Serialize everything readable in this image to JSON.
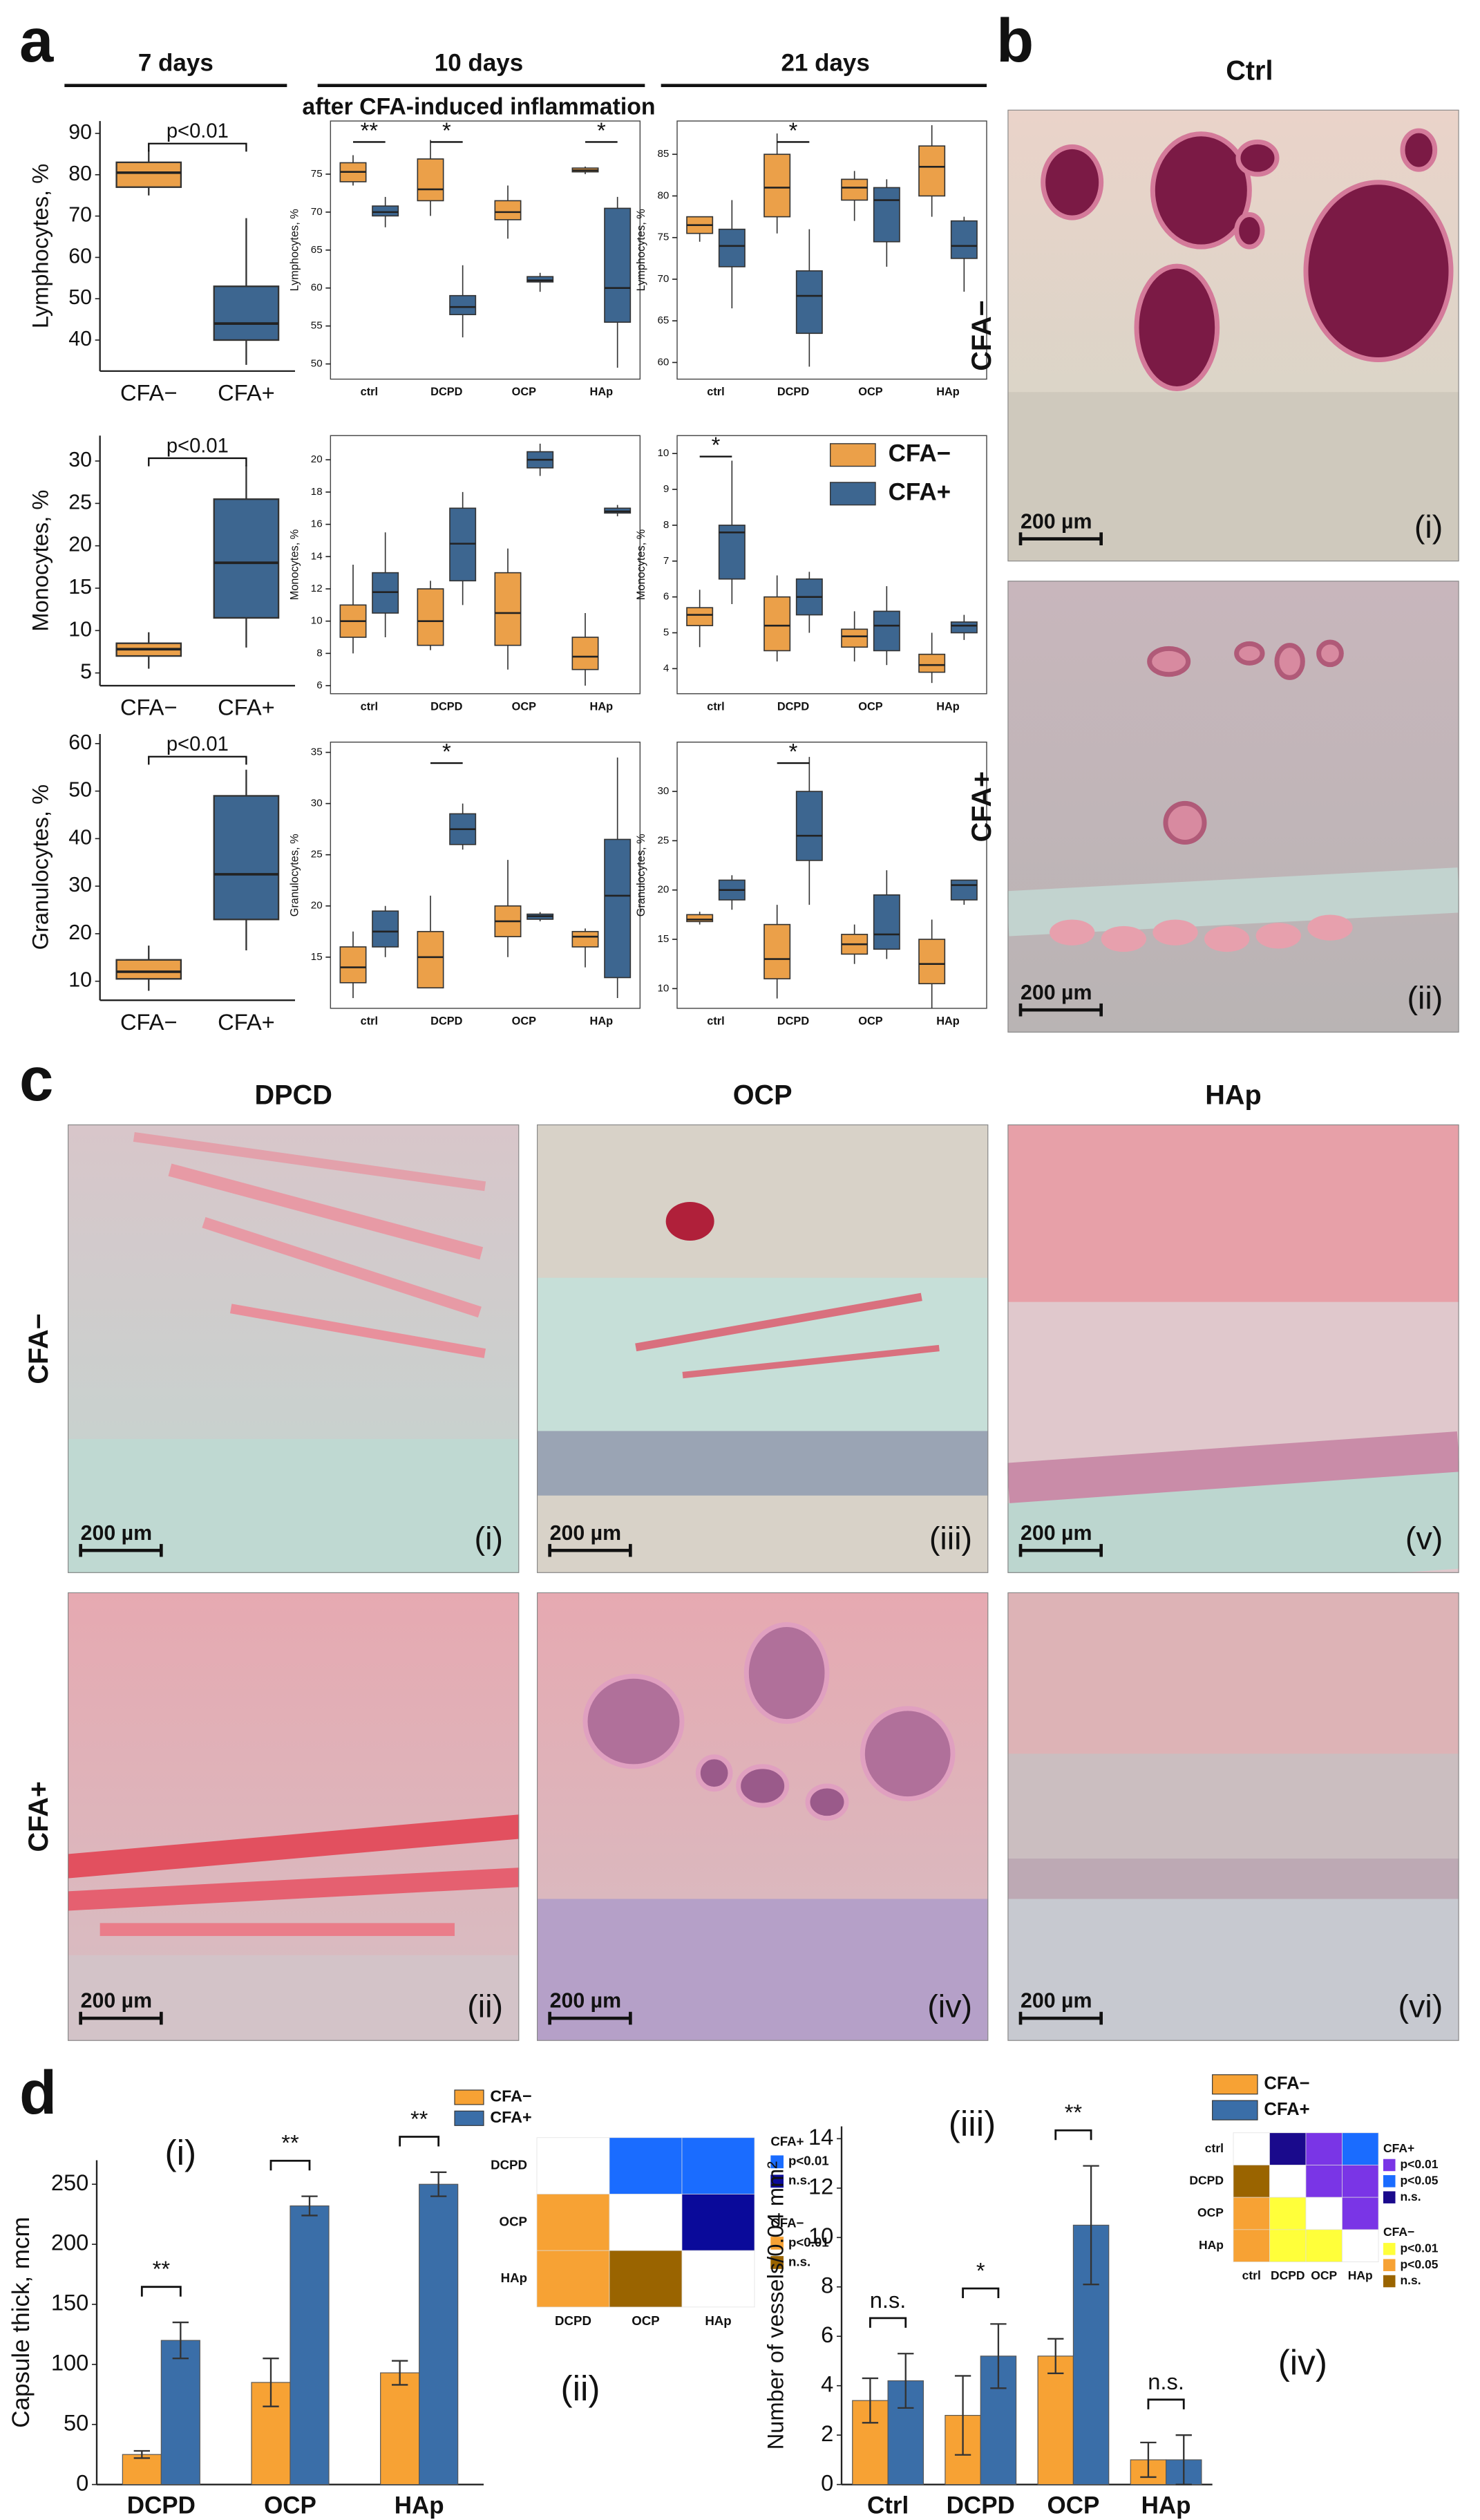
{
  "panel_labels": [
    "a",
    "b",
    "c",
    "d"
  ],
  "header": {
    "periods": [
      "7 days",
      "10 days",
      "21 days"
    ],
    "subtitle": "after CFA-induced inflammation"
  },
  "chart_data": [
    {
      "type": "box",
      "ylabel": "Lymphocytes, %",
      "categories": [
        "CFA−",
        "CFA+"
      ],
      "colors": [
        "#eba049",
        "#3d6690"
      ],
      "min": [
        75,
        34
      ],
      "q1": [
        77,
        40
      ],
      "median": [
        80.5,
        44
      ],
      "q3": [
        83,
        53
      ],
      "max": [
        86,
        69.5
      ],
      "ylim": [
        32.5,
        93
      ],
      "yticks": [
        40,
        50,
        60,
        70,
        80,
        90
      ],
      "annotation": "p<0.01"
    },
    {
      "type": "box",
      "ylabel": "Lymphocytes, %",
      "categories": [
        "ctrl",
        "DCPD",
        "OCP",
        "HAp"
      ],
      "series": [
        {
          "color": "#eba049",
          "min": [
            73.5,
            69.5,
            66.5,
            75
          ],
          "q1": [
            74,
            71.5,
            69,
            75.3
          ],
          "median": [
            75.3,
            73,
            70,
            75.5
          ],
          "q3": [
            76.5,
            77,
            71.5,
            75.8
          ],
          "max": [
            77.5,
            79.5,
            73.5,
            76
          ]
        },
        {
          "color": "#3d6690",
          "min": [
            68,
            53.5,
            59.5,
            49.5
          ],
          "q1": [
            69.5,
            56.5,
            60.8,
            55.5
          ],
          "median": [
            70,
            57.5,
            61,
            60
          ],
          "q3": [
            70.8,
            59,
            61.5,
            70.5
          ],
          "max": [
            72,
            63,
            62,
            72
          ]
        }
      ],
      "significance": [
        "**",
        "*",
        null,
        "*"
      ],
      "ylim": [
        48,
        82
      ],
      "yticks": [
        50,
        55,
        60,
        65,
        70,
        75
      ]
    },
    {
      "type": "box",
      "ylabel": "Lymphocytes, %",
      "categories": [
        "ctrl",
        "DCPD",
        "OCP",
        "HAp"
      ],
      "series": [
        {
          "color": "#eba049",
          "min": [
            74.5,
            75.5,
            77,
            77.5
          ],
          "q1": [
            75.5,
            77.5,
            79.5,
            80
          ],
          "median": [
            76.5,
            81,
            81,
            83.5
          ],
          "q3": [
            77.5,
            85,
            82,
            86
          ],
          "max": [
            77.5,
            87.5,
            83,
            88.5
          ]
        },
        {
          "color": "#3d6690",
          "min": [
            66.5,
            59.5,
            71.5,
            68.5
          ],
          "q1": [
            71.5,
            63.5,
            74.5,
            72.5
          ],
          "median": [
            74,
            68,
            79.5,
            74
          ],
          "q3": [
            76,
            71,
            81,
            77
          ],
          "max": [
            79.5,
            76,
            82,
            77.5
          ]
        }
      ],
      "significance": [
        null,
        "*",
        null,
        null
      ],
      "ylim": [
        58,
        89
      ],
      "yticks": [
        60,
        65,
        70,
        75,
        80,
        85
      ]
    },
    {
      "type": "box",
      "ylabel": "Monocytes, %",
      "categories": [
        "CFA−",
        "CFA+"
      ],
      "colors": [
        "#eba049",
        "#3d6690"
      ],
      "min": [
        5.5,
        8
      ],
      "q1": [
        7,
        11.5
      ],
      "median": [
        7.8,
        18
      ],
      "q3": [
        8.5,
        25.5
      ],
      "max": [
        9.8,
        29.5
      ],
      "ylim": [
        3.5,
        33
      ],
      "yticks": [
        5,
        10,
        15,
        20,
        25,
        30
      ],
      "annotation": "p<0.01"
    },
    {
      "type": "box",
      "ylabel": "Monocytes, %",
      "categories": [
        "ctrl",
        "DCPD",
        "OCP",
        "HAp"
      ],
      "series": [
        {
          "color": "#eba049",
          "min": [
            8,
            8.2,
            7,
            6
          ],
          "q1": [
            9,
            8.5,
            8.5,
            7
          ],
          "median": [
            10,
            10,
            10.5,
            7.8
          ],
          "q3": [
            11,
            12,
            13,
            9
          ],
          "max": [
            13.5,
            12.5,
            14.5,
            10.5
          ]
        },
        {
          "color": "#3d6690",
          "min": [
            9,
            11,
            19,
            16.5
          ],
          "q1": [
            10.5,
            12.5,
            19.5,
            16.7
          ],
          "median": [
            11.8,
            14.8,
            20,
            16.8
          ],
          "q3": [
            13,
            17,
            20.5,
            17
          ],
          "max": [
            15.5,
            18,
            21,
            17.2
          ]
        }
      ],
      "ylim": [
        5.5,
        21.5
      ],
      "yticks": [
        6,
        8,
        10,
        12,
        14,
        16,
        18,
        20
      ]
    },
    {
      "type": "box",
      "ylabel": "Monocytes, %",
      "categories": [
        "ctrl",
        "DCPD",
        "OCP",
        "HAp"
      ],
      "series": [
        {
          "color": "#eba049",
          "min": [
            4.6,
            4.2,
            4.2,
            3.6
          ],
          "q1": [
            5.2,
            4.5,
            4.6,
            3.9
          ],
          "median": [
            5.5,
            5.2,
            4.9,
            4.1
          ],
          "q3": [
            5.7,
            6,
            5.1,
            4.4
          ],
          "max": [
            6.2,
            6.6,
            5.6,
            5
          ]
        },
        {
          "color": "#3d6690",
          "min": [
            5.8,
            5,
            4.1,
            4.8
          ],
          "q1": [
            6.5,
            5.5,
            4.5,
            5
          ],
          "median": [
            7.8,
            6,
            5.2,
            5.2
          ],
          "q3": [
            8,
            6.5,
            5.6,
            5.3
          ],
          "max": [
            9.8,
            6.7,
            6.3,
            5.5
          ]
        }
      ],
      "significance": [
        "*",
        null,
        null,
        null
      ],
      "ylim": [
        3.3,
        10.5
      ],
      "yticks": [
        4,
        5,
        6,
        7,
        8,
        9,
        10
      ],
      "legend": [
        {
          "name": "CFA−",
          "color": "#eba049"
        },
        {
          "name": "CFA+",
          "color": "#3d6690"
        }
      ]
    },
    {
      "type": "box",
      "ylabel": "Granulocytes, %",
      "categories": [
        "CFA−",
        "CFA+"
      ],
      "colors": [
        "#eba049",
        "#3d6690"
      ],
      "min": [
        8,
        16.5
      ],
      "q1": [
        10.5,
        23
      ],
      "median": [
        12,
        32.5
      ],
      "q3": [
        14.5,
        49
      ],
      "max": [
        17.5,
        54.5
      ],
      "ylim": [
        6,
        62
      ],
      "yticks": [
        10,
        20,
        30,
        40,
        50,
        60
      ],
      "annotation": "p<0.01"
    },
    {
      "type": "box",
      "ylabel": "Granulocytes, %",
      "categories": [
        "ctrl",
        "DCPD",
        "OCP",
        "HAp"
      ],
      "series": [
        {
          "color": "#eba049",
          "min": [
            11,
            12,
            15,
            14
          ],
          "q1": [
            12.5,
            12,
            17,
            16
          ],
          "median": [
            14,
            15,
            18.5,
            17
          ],
          "q3": [
            16,
            17.5,
            20,
            17.5
          ],
          "max": [
            17.5,
            21,
            24.5,
            17.8
          ]
        },
        {
          "color": "#3d6690",
          "min": [
            15,
            25.5,
            18.5,
            11
          ],
          "q1": [
            16,
            26,
            18.7,
            13
          ],
          "median": [
            17.5,
            27.5,
            19,
            21
          ],
          "q3": [
            19.5,
            29,
            19.2,
            26.5
          ],
          "max": [
            20,
            30,
            19.4,
            34.5
          ]
        }
      ],
      "significance": [
        null,
        "*",
        null,
        null
      ],
      "ylim": [
        10,
        36
      ],
      "yticks": [
        15,
        20,
        25,
        30,
        35
      ]
    },
    {
      "type": "box",
      "ylabel": "Granulocytes, %",
      "categories": [
        "ctrl",
        "DCPD",
        "OCP",
        "HAp"
      ],
      "series": [
        {
          "color": "#eba049",
          "min": [
            16.5,
            9,
            12.5,
            8
          ],
          "q1": [
            16.8,
            11,
            13.5,
            10.5
          ],
          "median": [
            17,
            13,
            14.5,
            12.5
          ],
          "q3": [
            17.5,
            16.5,
            15.5,
            15
          ],
          "max": [
            17.8,
            18.5,
            16.5,
            17
          ]
        },
        {
          "color": "#3d6690",
          "min": [
            18,
            18.5,
            13,
            18.5
          ],
          "q1": [
            19,
            23,
            14,
            19
          ],
          "median": [
            20,
            25.5,
            15.5,
            20.5
          ],
          "q3": [
            21,
            30,
            19.5,
            21
          ],
          "max": [
            21.5,
            33.5,
            22,
            21
          ]
        }
      ],
      "significance": [
        null,
        "*",
        null,
        null
      ],
      "ylim": [
        8,
        35
      ],
      "yticks": [
        10,
        15,
        20,
        25,
        30
      ]
    },
    {
      "type": "bar",
      "label": "(i)",
      "ylabel": "Capsule thick, mcm",
      "categories": [
        "DCPD",
        "OCP",
        "HAp"
      ],
      "series": [
        {
          "color": "#f7a234",
          "values": [
            25,
            85,
            93
          ],
          "errors": [
            3,
            20,
            10
          ]
        },
        {
          "color": "#3a6ea8",
          "values": [
            120,
            232,
            250
          ],
          "errors": [
            15,
            8,
            10
          ]
        }
      ],
      "significance": [
        "**",
        "**",
        "**"
      ],
      "ylim": [
        0,
        270
      ],
      "yticks": [
        0,
        50,
        100,
        150,
        200,
        250
      ]
    },
    {
      "type": "heatmap",
      "label": "(ii)",
      "rows": [
        "DCPD",
        "OCP",
        "HAp"
      ],
      "columns": [
        "DCPD",
        "OCP",
        "HAp"
      ],
      "colors": [
        [
          "#ffffff",
          "#1a6cff",
          "#1a6cff"
        ],
        [
          "#f7a234",
          "#ffffff",
          "#0a0a9a"
        ],
        [
          "#f7a234",
          "#9a6400",
          "#ffffff"
        ]
      ],
      "key": [
        {
          "name": "CFA−",
          "color": "#f7a234"
        },
        {
          "name": "CFA+",
          "color": "#3a6ea8"
        }
      ],
      "legend": [
        {
          "title": "CFA+",
          "items": [
            {
              "label": "p<0.01",
              "color": "#1a6cff"
            },
            {
              "label": "n.s.",
              "color": "#0a0a9a"
            }
          ]
        },
        {
          "title": "CFA−",
          "items": [
            {
              "label": "p<0.01",
              "color": "#f7a234"
            },
            {
              "label": "n.s.",
              "color": "#9a6400"
            }
          ]
        }
      ]
    },
    {
      "type": "bar",
      "label": "(iii)",
      "ylabel": "Number of vessels/0.04 mm²",
      "categories": [
        "Ctrl",
        "DCPD",
        "OCP",
        "HAp"
      ],
      "series": [
        {
          "color": "#f7a234",
          "values": [
            3.4,
            2.8,
            5.2,
            1.0
          ],
          "errors": [
            0.9,
            1.6,
            0.7,
            0.7
          ]
        },
        {
          "color": "#3a6ea8",
          "values": [
            4.2,
            5.2,
            10.5,
            1.0
          ],
          "errors": [
            1.1,
            1.3,
            2.4,
            1.0
          ]
        }
      ],
      "significance": [
        "n.s.",
        "*",
        "**",
        "n.s."
      ],
      "ylim": [
        0,
        14.5
      ],
      "yticks": [
        0,
        2,
        4,
        6,
        8,
        10,
        12,
        14
      ]
    },
    {
      "type": "heatmap",
      "label": "(iv)",
      "rows": [
        "ctrl",
        "DCPD",
        "OCP",
        "HAp"
      ],
      "columns": [
        "ctrl",
        "DCPD",
        "OCP",
        "HAp"
      ],
      "colors": [
        [
          "#ffffff",
          "#1a0a8c",
          "#7a35e6",
          "#1a6cff"
        ],
        [
          "#9a6400",
          "#ffffff",
          "#7a35e6",
          "#7a35e6"
        ],
        [
          "#f7a234",
          "#ffff3a",
          "#ffffff",
          "#7a35e6"
        ],
        [
          "#f7a234",
          "#ffff3a",
          "#ffff3a",
          "#ffffff"
        ]
      ],
      "key": [
        {
          "name": "CFA−",
          "color": "#f7a234"
        },
        {
          "name": "CFA+",
          "color": "#3a6ea8"
        }
      ],
      "legend": [
        {
          "title": "CFA+",
          "items": [
            {
              "label": "p<0.01",
              "color": "#7a35e6"
            },
            {
              "label": "p<0.05",
              "color": "#1a6cff"
            },
            {
              "label": "n.s.",
              "color": "#1a0a8c"
            }
          ]
        },
        {
          "title": "CFA−",
          "items": [
            {
              "label": "p<0.01",
              "color": "#ffff3a"
            },
            {
              "label": "p<0.05",
              "color": "#f7a234"
            },
            {
              "label": "n.s.",
              "color": "#9a6400"
            }
          ]
        }
      ]
    }
  ],
  "histology": {
    "b": {
      "title": "Ctrl",
      "rows": [
        "CFA−",
        "CFA+"
      ],
      "images": [
        {
          "label": "(i)",
          "scale": "200 µm"
        },
        {
          "label": "(ii)",
          "scale": "200 µm"
        }
      ]
    },
    "c": {
      "columns": [
        "DPCD",
        "OCP",
        "HAp"
      ],
      "rows": [
        "CFA−",
        "CFA+"
      ],
      "images": [
        {
          "label": "(i)",
          "scale": "200 µm"
        },
        {
          "label": "(ii)",
          "scale": "200 µm"
        },
        {
          "label": "(iii)",
          "scale": "200 µm"
        },
        {
          "label": "(iv)",
          "scale": "200 µm"
        },
        {
          "label": "(v)",
          "scale": "200 µm"
        },
        {
          "label": "(vi)",
          "scale": "200 µm"
        }
      ]
    }
  }
}
